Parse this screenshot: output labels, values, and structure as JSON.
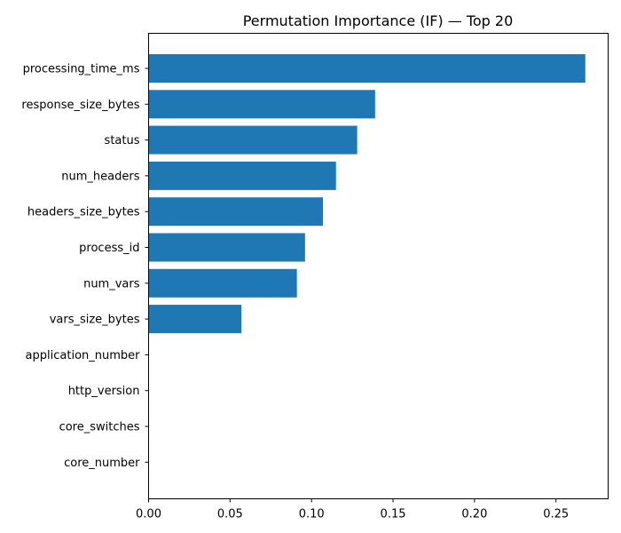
{
  "chart_data": {
    "type": "bar",
    "orientation": "horizontal",
    "title": "Permutation Importance (IF) — Top 20",
    "xlabel": "",
    "ylabel": "",
    "xlim": [
      0,
      0.282
    ],
    "grid": false,
    "legend": "none",
    "bar_color": "#1f77b4",
    "categories": [
      "processing_time_ms",
      "response_size_bytes",
      "status",
      "num_headers",
      "headers_size_bytes",
      "process_id",
      "num_vars",
      "vars_size_bytes",
      "application_number",
      "http_version",
      "core_switches",
      "core_number"
    ],
    "values": [
      0.268,
      0.139,
      0.128,
      0.115,
      0.107,
      0.096,
      0.091,
      0.057,
      0,
      0,
      0,
      0
    ],
    "x_ticks": [
      0.0,
      0.05,
      0.1,
      0.15,
      0.2,
      0.25
    ],
    "x_tick_labels": [
      "0.00",
      "0.05",
      "0.10",
      "0.15",
      "0.20",
      "0.25"
    ]
  }
}
